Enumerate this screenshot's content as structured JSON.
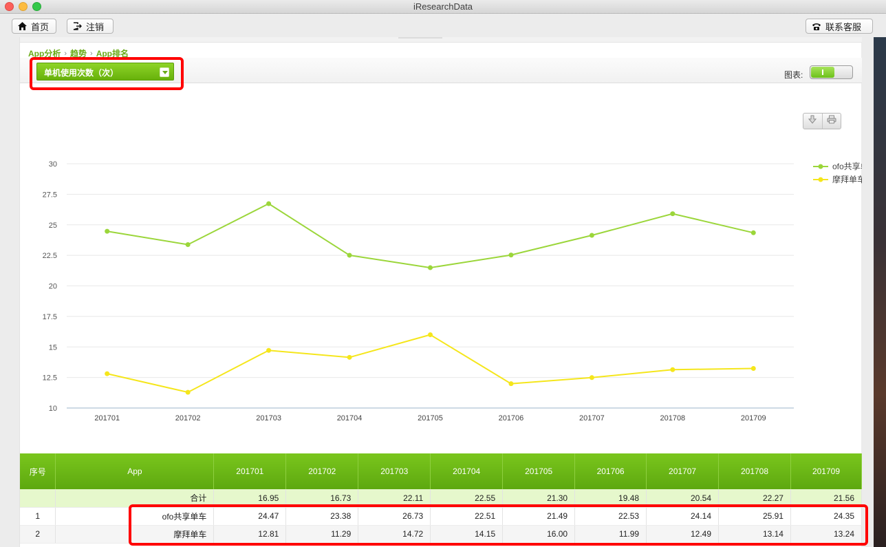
{
  "window": {
    "title": "iResearchData"
  },
  "toolbar": {
    "home_label": "首页",
    "logout_label": "注销",
    "service_label": "联系客服"
  },
  "breadcrumb": [
    "App分析",
    "趋势",
    "App排名"
  ],
  "filter": {
    "metric_selected": "单机使用次数（次）",
    "chart_toggle_label": "图表:"
  },
  "colors": {
    "accent": "#6aab17",
    "ofo": "#9bd63a",
    "mobike": "#f5e61b",
    "highlight": "#ff0000"
  },
  "chart_data": {
    "type": "line",
    "categories": [
      "201701",
      "201702",
      "201703",
      "201704",
      "201705",
      "201706",
      "201707",
      "201708",
      "201709"
    ],
    "series": [
      {
        "name": "ofo共享单车",
        "values": [
          24.47,
          23.38,
          26.73,
          22.51,
          21.49,
          22.53,
          24.14,
          25.91,
          24.35
        ]
      },
      {
        "name": "摩拜单车",
        "values": [
          12.81,
          11.29,
          14.72,
          14.15,
          16.0,
          11.99,
          12.49,
          13.14,
          13.24
        ]
      }
    ],
    "ylim": [
      10,
      30
    ],
    "yticks": [
      "10",
      "12.5",
      "15",
      "17.5",
      "20",
      "22.5",
      "25",
      "27.5",
      "30"
    ],
    "grid": true,
    "legend_position": "top-right"
  },
  "table": {
    "headers": [
      "序号",
      "App",
      "201701",
      "201702",
      "201703",
      "201704",
      "201705",
      "201706",
      "201707",
      "201708",
      "201709"
    ],
    "total_row": {
      "label": "合计",
      "values": [
        "16.95",
        "16.73",
        "22.11",
        "22.55",
        "21.30",
        "19.48",
        "20.54",
        "22.27",
        "21.56"
      ]
    },
    "rows": [
      {
        "index": "1",
        "app": "ofo共享单车",
        "values": [
          "24.47",
          "23.38",
          "26.73",
          "22.51",
          "21.49",
          "22.53",
          "24.14",
          "25.91",
          "24.35"
        ]
      },
      {
        "index": "2",
        "app": "摩拜单车",
        "values": [
          "12.81",
          "11.29",
          "14.72",
          "14.15",
          "16.00",
          "11.99",
          "12.49",
          "13.14",
          "13.24"
        ]
      }
    ]
  }
}
